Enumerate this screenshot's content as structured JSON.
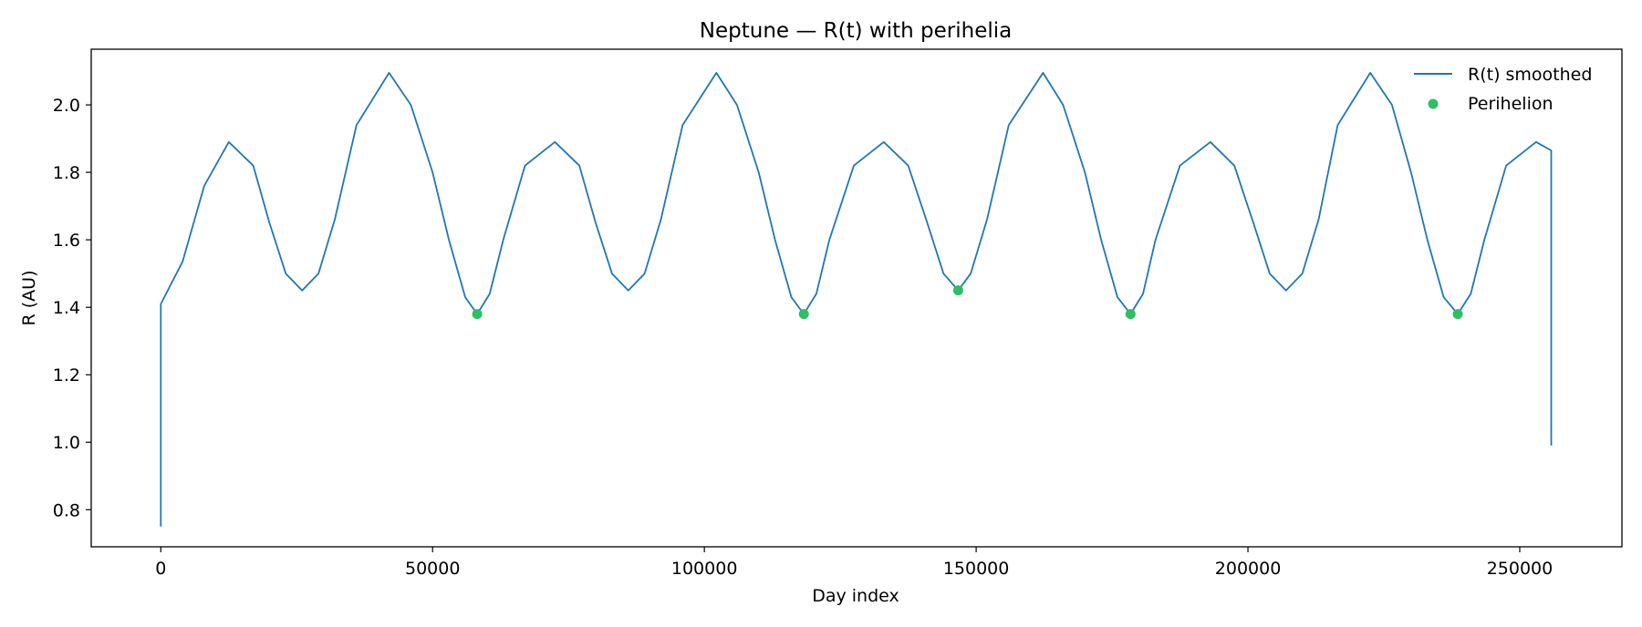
{
  "chart_data": {
    "type": "line",
    "title": "Neptune — R(t) with perihelia",
    "xlabel": "Day index",
    "ylabel": "R (AU)",
    "xlim": [
      -12800,
      268800
    ],
    "ylim": [
      0.69,
      2.165
    ],
    "xticks": [
      0,
      50000,
      100000,
      150000,
      200000,
      250000
    ],
    "yticks": [
      0.8,
      1.0,
      1.2,
      1.4,
      1.6,
      1.8,
      2.0
    ],
    "grid": false,
    "legend_position": "top-right",
    "series": [
      {
        "name": "R(t) smoothed",
        "kind": "line",
        "color": "#1f77b4",
        "points": [
          [
            0,
            0.75
          ],
          [
            0,
            1.41
          ],
          [
            4000,
            1.535
          ],
          [
            8000,
            1.76
          ],
          [
            12500,
            1.89
          ],
          [
            17000,
            1.82
          ],
          [
            20000,
            1.65
          ],
          [
            23000,
            1.5
          ],
          [
            26000,
            1.45
          ],
          [
            29000,
            1.5
          ],
          [
            32000,
            1.66
          ],
          [
            36000,
            1.94
          ],
          [
            42000,
            2.095
          ],
          [
            46000,
            2.0
          ],
          [
            50000,
            1.8
          ],
          [
            53000,
            1.6
          ],
          [
            56000,
            1.43
          ],
          [
            58200,
            1.38
          ],
          [
            60500,
            1.44
          ],
          [
            63000,
            1.6
          ],
          [
            67000,
            1.82
          ],
          [
            72500,
            1.89
          ],
          [
            77000,
            1.82
          ],
          [
            80000,
            1.65
          ],
          [
            83000,
            1.5
          ],
          [
            86000,
            1.45
          ],
          [
            89000,
            1.5
          ],
          [
            92000,
            1.66
          ],
          [
            96000,
            1.94
          ],
          [
            102200,
            2.095
          ],
          [
            106000,
            2.0
          ],
          [
            110000,
            1.8
          ],
          [
            113000,
            1.6
          ],
          [
            116000,
            1.43
          ],
          [
            118300,
            1.38
          ],
          [
            120600,
            1.44
          ],
          [
            123000,
            1.6
          ],
          [
            127500,
            1.82
          ],
          [
            133000,
            1.89
          ],
          [
            137500,
            1.82
          ],
          [
            141000,
            1.65
          ],
          [
            144000,
            1.5
          ],
          [
            146700,
            1.45
          ],
          [
            149000,
            1.5
          ],
          [
            152000,
            1.66
          ],
          [
            156000,
            1.94
          ],
          [
            162300,
            2.095
          ],
          [
            166000,
            2.0
          ],
          [
            170000,
            1.8
          ],
          [
            173000,
            1.6
          ],
          [
            176000,
            1.43
          ],
          [
            178400,
            1.38
          ],
          [
            180700,
            1.44
          ],
          [
            183000,
            1.6
          ],
          [
            187500,
            1.82
          ],
          [
            193100,
            1.89
          ],
          [
            197500,
            1.82
          ],
          [
            201000,
            1.65
          ],
          [
            204000,
            1.5
          ],
          [
            207000,
            1.45
          ],
          [
            210000,
            1.5
          ],
          [
            213000,
            1.66
          ],
          [
            216500,
            1.94
          ],
          [
            222500,
            2.095
          ],
          [
            226500,
            2.0
          ],
          [
            230000,
            1.8
          ],
          [
            233000,
            1.6
          ],
          [
            236000,
            1.43
          ],
          [
            238600,
            1.38
          ],
          [
            241000,
            1.44
          ],
          [
            243500,
            1.6
          ],
          [
            247500,
            1.82
          ],
          [
            253000,
            1.89
          ],
          [
            255800,
            1.865
          ],
          [
            255800,
            0.99
          ]
        ]
      },
      {
        "name": "Perihelion",
        "kind": "scatter",
        "color": "#2dbf62",
        "points": [
          [
            58200,
            1.38
          ],
          [
            118300,
            1.38
          ],
          [
            146700,
            1.45
          ],
          [
            178400,
            1.38
          ],
          [
            238600,
            1.38
          ]
        ]
      }
    ]
  }
}
